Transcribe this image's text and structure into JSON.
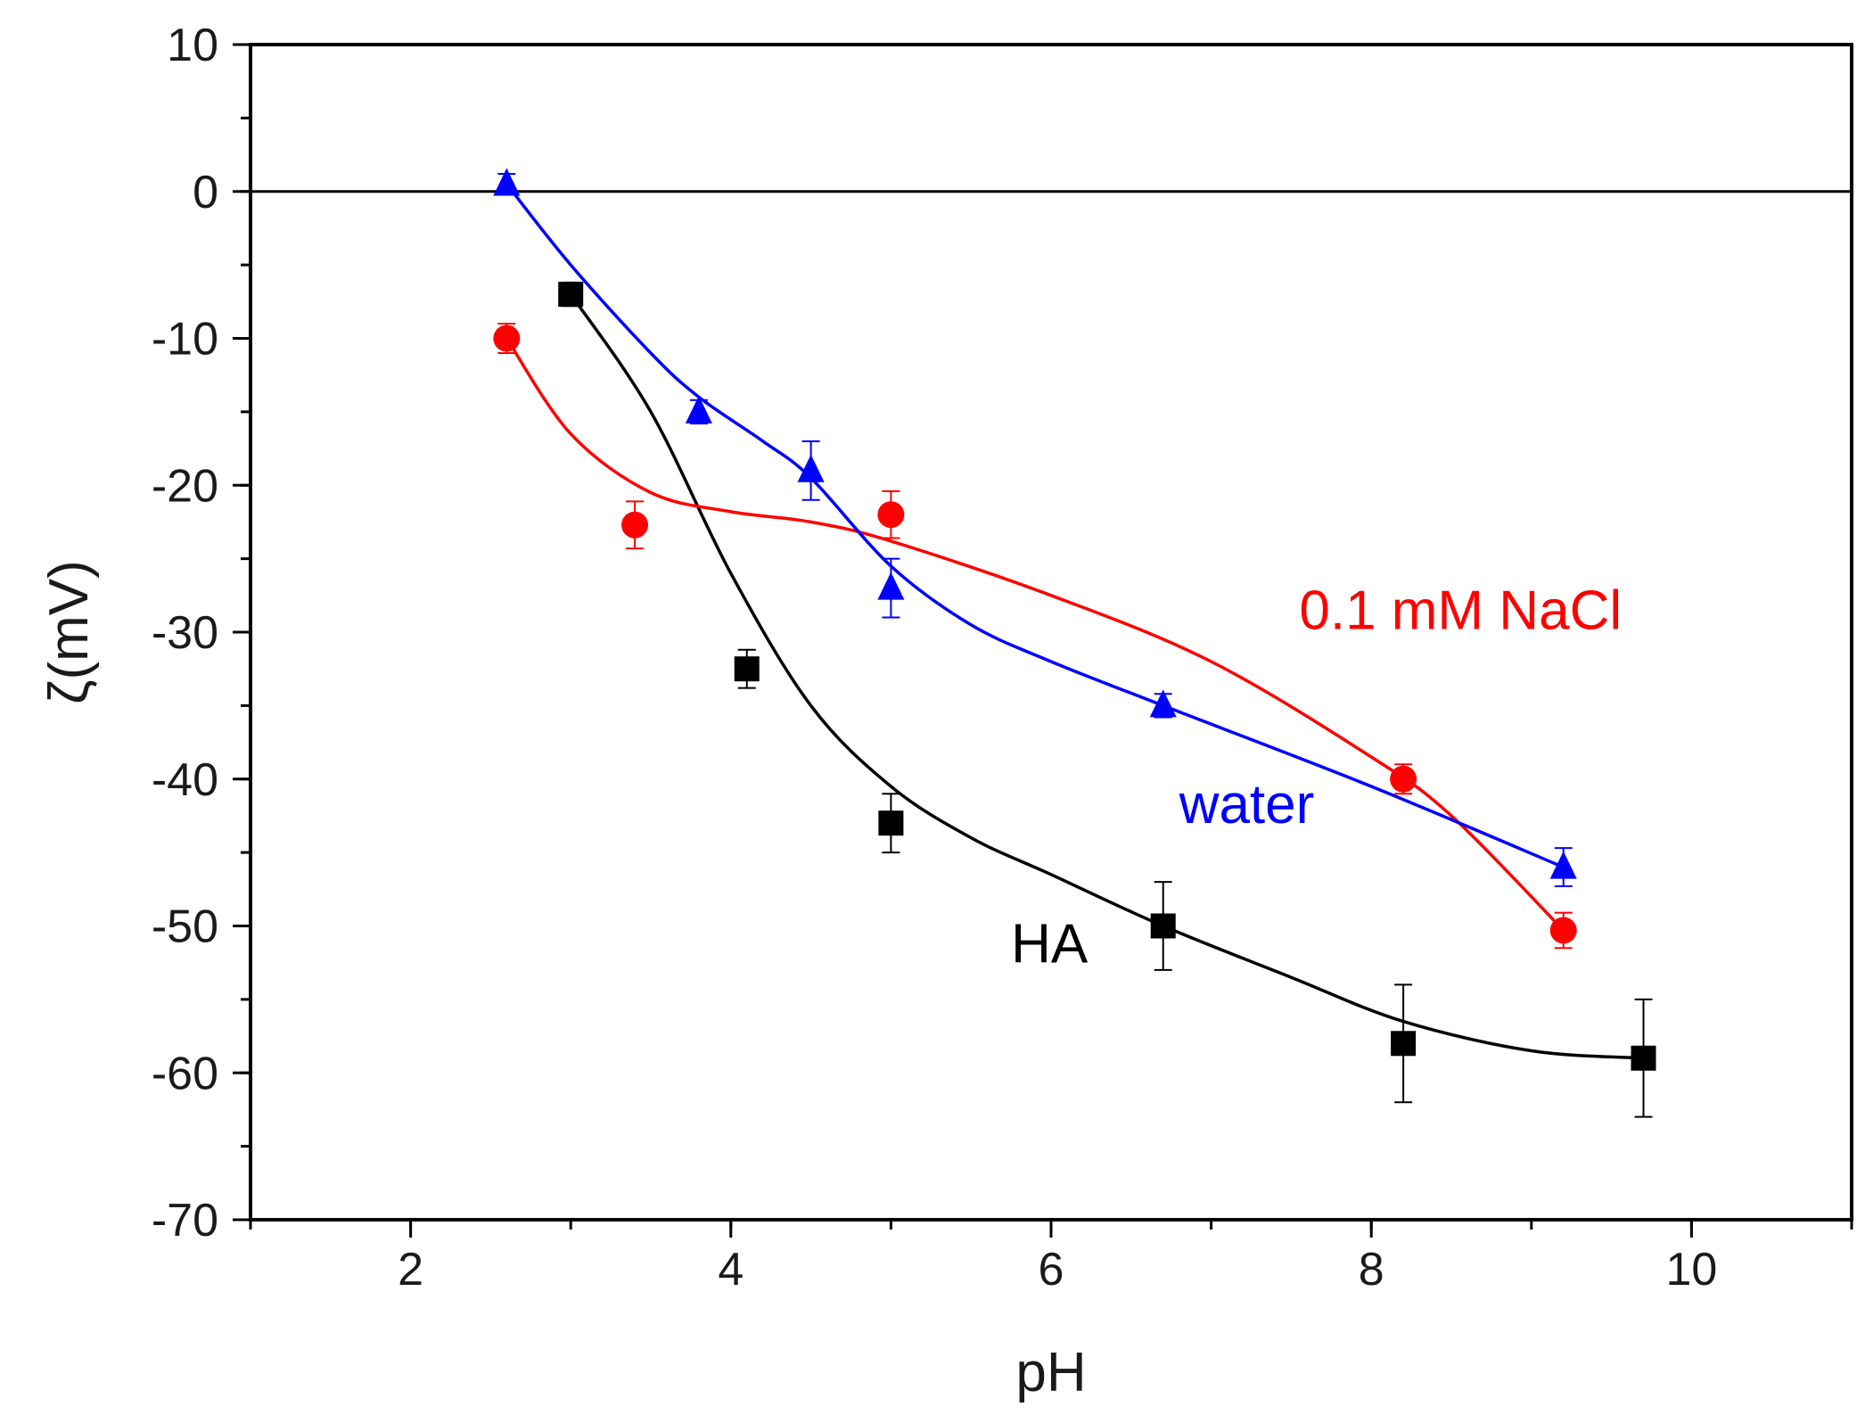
{
  "chart_data": {
    "type": "scatter",
    "title": "",
    "xlabel": "pH",
    "ylabel": "ζ(mV)",
    "xlim": [
      1,
      11
    ],
    "ylim": [
      -70,
      10
    ],
    "x_ticks": [
      2,
      4,
      6,
      8,
      10
    ],
    "y_ticks": [
      10,
      0,
      -10,
      -20,
      -30,
      -40,
      -50,
      -60,
      -70
    ],
    "x_minor_step": 1,
    "y_minor_step": 5,
    "grid": false,
    "reference_line": {
      "y": 0,
      "color": "#000000"
    },
    "series": [
      {
        "name": "HA",
        "marker": "square",
        "color": "#000000",
        "points": [
          {
            "x": 3.0,
            "y": -7,
            "err": 0.8
          },
          {
            "x": 4.1,
            "y": -32.5,
            "err": 1.3
          },
          {
            "x": 5.0,
            "y": -43,
            "err": 2.0
          },
          {
            "x": 6.7,
            "y": -50,
            "err": 3.0
          },
          {
            "x": 8.2,
            "y": -58,
            "err": 4.0
          },
          {
            "x": 9.7,
            "y": -59,
            "err": 4.0
          }
        ],
        "curve": [
          [
            3.0,
            -7
          ],
          [
            3.5,
            -15
          ],
          [
            4.0,
            -26
          ],
          [
            4.5,
            -35
          ],
          [
            5.0,
            -40.5
          ],
          [
            5.5,
            -44
          ],
          [
            6.0,
            -46.5
          ],
          [
            6.7,
            -50
          ],
          [
            7.5,
            -53.5
          ],
          [
            8.2,
            -56.5
          ],
          [
            9.0,
            -58.5
          ],
          [
            9.7,
            -59
          ]
        ],
        "label": {
          "text": "HA",
          "x": 5.75,
          "y": -52.5
        }
      },
      {
        "name": "0.1 mM NaCl",
        "marker": "circle",
        "color": "#ff0000",
        "points": [
          {
            "x": 2.6,
            "y": -10,
            "err": 1.0
          },
          {
            "x": 3.4,
            "y": -22.7,
            "err": 1.6
          },
          {
            "x": 5.0,
            "y": -22,
            "err": 1.6
          },
          {
            "x": 8.2,
            "y": -40,
            "err": 1.0
          },
          {
            "x": 9.2,
            "y": -50.3,
            "err": 1.2
          }
        ],
        "curve": [
          [
            2.6,
            -10
          ],
          [
            3.0,
            -16.5
          ],
          [
            3.5,
            -20.5
          ],
          [
            4.0,
            -21.8
          ],
          [
            4.5,
            -22.5
          ],
          [
            5.0,
            -23.8
          ],
          [
            6.0,
            -27.5
          ],
          [
            7.0,
            -32
          ],
          [
            8.0,
            -38.5
          ],
          [
            8.5,
            -42.5
          ],
          [
            9.2,
            -50.3
          ]
        ],
        "label": {
          "text": "0.1 mM NaCl",
          "x": 7.55,
          "y": -29.8
        }
      },
      {
        "name": "water",
        "marker": "triangle",
        "color": "#0000ff",
        "points": [
          {
            "x": 2.6,
            "y": 0.5,
            "err": 0.7
          },
          {
            "x": 3.8,
            "y": -15,
            "err": 0.8
          },
          {
            "x": 4.5,
            "y": -19,
            "err": 2.0
          },
          {
            "x": 5.0,
            "y": -27,
            "err": 2.0
          },
          {
            "x": 6.7,
            "y": -35,
            "err": 0.8
          },
          {
            "x": 9.2,
            "y": -46,
            "err": 1.3
          }
        ],
        "curve": [
          [
            2.6,
            0.5
          ],
          [
            3.0,
            -5
          ],
          [
            3.5,
            -11
          ],
          [
            3.8,
            -14
          ],
          [
            4.2,
            -17
          ],
          [
            4.5,
            -19.5
          ],
          [
            5.0,
            -25.5
          ],
          [
            5.5,
            -29.5
          ],
          [
            6.0,
            -32
          ],
          [
            6.7,
            -35
          ],
          [
            8.0,
            -40.5
          ],
          [
            9.2,
            -46
          ]
        ],
        "label": {
          "text": "water",
          "x": 6.8,
          "y": -43
        }
      }
    ]
  }
}
